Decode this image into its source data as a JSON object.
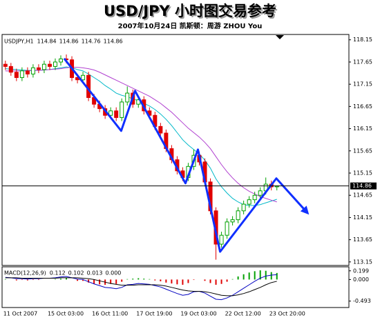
{
  "title": "USD/JPY  小时图交易参考",
  "subtitle": "2007年10月24日  凯斯顿：周游 ZHOU You",
  "chart_data": [
    {
      "type": "candlestick",
      "label": "USDJPY,H1",
      "categories": [
        "11 Oct 2007",
        null,
        null,
        null,
        null,
        null,
        null,
        null,
        "15 Oct 03:00",
        null,
        null,
        null,
        null,
        null,
        null,
        null,
        "16 Oct 11:00",
        null,
        null,
        null,
        null,
        null,
        null,
        null,
        "17 Oct 19:00",
        null,
        null,
        null,
        null,
        null,
        null,
        null,
        "19 Oct 03:00",
        null,
        null,
        null,
        null,
        null,
        null,
        null,
        "22 Oct 12:00",
        null,
        null,
        null,
        null,
        null,
        null,
        null,
        "23 Oct 20:00",
        null
      ],
      "xlim": [
        -0.6,
        62
      ],
      "ylim": [
        113.07,
        118.27
      ],
      "yticks": [
        118.15,
        117.65,
        117.15,
        116.65,
        116.15,
        115.65,
        115.15,
        114.65,
        114.15,
        113.65,
        113.15
      ],
      "open": [
        117.6,
        117.55,
        117.42,
        117.3,
        117.45,
        117.38,
        117.52,
        117.48,
        117.6,
        117.55,
        117.65,
        117.72,
        117.7,
        117.3,
        117.25,
        117.35,
        116.85,
        116.7,
        116.6,
        116.45,
        116.55,
        116.4,
        116.75,
        116.95,
        116.7,
        116.8,
        116.55,
        116.45,
        116.2,
        116.05,
        115.7,
        115.45,
        115.2,
        115.05,
        115.3,
        115.55,
        115.4,
        114.95,
        114.3,
        113.55,
        113.75,
        114.05,
        114.1,
        114.3,
        114.45,
        114.55,
        114.65,
        114.75,
        114.9,
        114.84
      ],
      "high": [
        117.68,
        117.63,
        117.5,
        117.53,
        117.53,
        117.6,
        117.6,
        117.68,
        117.68,
        117.73,
        117.8,
        117.82,
        117.78,
        117.38,
        117.43,
        117.43,
        116.93,
        116.78,
        116.68,
        116.63,
        116.63,
        116.83,
        117.1,
        117.03,
        116.88,
        116.88,
        116.63,
        116.53,
        116.28,
        116.13,
        115.78,
        115.53,
        115.28,
        115.38,
        115.68,
        115.63,
        115.48,
        115.03,
        114.38,
        113.83,
        114.13,
        114.18,
        114.38,
        114.53,
        114.63,
        114.73,
        114.83,
        115.05,
        114.98,
        114.86
      ],
      "low": [
        117.47,
        117.34,
        117.22,
        117.22,
        117.3,
        117.3,
        117.4,
        117.4,
        117.47,
        117.47,
        117.57,
        117.62,
        117.22,
        117.17,
        117.17,
        116.77,
        116.62,
        116.52,
        116.37,
        116.37,
        116.32,
        116.32,
        116.67,
        116.62,
        116.62,
        116.47,
        116.37,
        116.12,
        115.97,
        115.62,
        115.37,
        115.12,
        114.97,
        114.97,
        115.22,
        115.32,
        114.87,
        114.22,
        113.2,
        113.47,
        113.67,
        113.97,
        114.02,
        114.22,
        114.37,
        114.47,
        114.57,
        114.67,
        114.76,
        114.76
      ],
      "close": [
        117.55,
        117.42,
        117.3,
        117.45,
        117.38,
        117.52,
        117.48,
        117.6,
        117.55,
        117.65,
        117.72,
        117.7,
        117.3,
        117.25,
        117.35,
        116.85,
        116.7,
        116.6,
        116.45,
        116.55,
        116.4,
        116.75,
        116.95,
        116.7,
        116.8,
        116.55,
        116.45,
        116.2,
        116.05,
        115.7,
        115.45,
        115.2,
        115.05,
        115.3,
        115.55,
        115.4,
        114.95,
        114.3,
        113.55,
        113.75,
        114.05,
        114.1,
        114.3,
        114.45,
        114.55,
        114.65,
        114.75,
        114.9,
        114.84,
        114.86
      ],
      "up_color": "#00a000",
      "down_color": "#e00000",
      "series": [
        {
          "color": "#00b8c8",
          "values": [
            117.5,
            117.49,
            117.48,
            117.47,
            117.46,
            117.46,
            117.46,
            117.47,
            117.48,
            117.5,
            117.52,
            117.54,
            117.52,
            117.48,
            117.45,
            117.38,
            117.3,
            117.22,
            117.12,
            117.04,
            116.95,
            116.9,
            116.87,
            116.82,
            116.78,
            116.72,
            116.66,
            116.58,
            116.48,
            116.36,
            116.22,
            116.06,
            115.9,
            115.78,
            115.68,
            115.58,
            115.44,
            115.26,
            115.02,
            114.84,
            114.7,
            114.58,
            114.5,
            114.44,
            114.42,
            114.42,
            114.44,
            114.48,
            114.52,
            114.56
          ]
        },
        {
          "color": "#b040d0",
          "values": [
            117.45,
            117.45,
            117.45,
            117.45,
            117.45,
            117.46,
            117.46,
            117.47,
            117.48,
            117.49,
            117.5,
            117.52,
            117.53,
            117.53,
            117.52,
            117.5,
            117.47,
            117.42,
            117.36,
            117.3,
            117.24,
            117.18,
            117.12,
            117.06,
            117.0,
            116.94,
            116.88,
            116.8,
            116.72,
            116.62,
            116.52,
            116.4,
            116.28,
            116.16,
            116.06,
            115.96,
            115.84,
            115.7,
            115.52,
            115.34,
            115.18,
            115.04,
            114.92,
            114.82,
            114.74,
            114.68,
            114.62,
            114.58,
            114.54,
            114.5
          ]
        }
      ],
      "trend_line": {
        "color": "#1030ff",
        "x": [
          10.6,
          20.9,
          23.4,
          32.5,
          34.75,
          38.75,
          48.9,
          54.4
        ],
        "y": [
          117.73,
          116.1,
          117.0,
          114.92,
          115.68,
          113.38,
          115.03,
          114.27
        ]
      }
    },
    {
      "type": "macd",
      "label": "MACD(12,26,9)",
      "readings": [
        0.112,
        0.102,
        0.013,
        {
          "value": 0,
          "label": "0.000"
        }
      ],
      "ylim": [
        -0.64,
        0.29
      ],
      "yticks": [
        0.199,
        {
          "value": 0,
          "label": "0.000"
        },
        -0.493
      ],
      "histogram": {
        "values": [
          0.01,
          0,
          -0.02,
          -0.01,
          -0.02,
          -0.01,
          -0.01,
          0,
          0,
          0.01,
          0.02,
          0.03,
          0,
          -0.03,
          -0.03,
          -0.07,
          -0.1,
          -0.11,
          -0.12,
          -0.1,
          -0.1,
          -0.05,
          0.01,
          0.02,
          0.03,
          0.02,
          0.01,
          -0.02,
          -0.04,
          -0.07,
          -0.09,
          -0.11,
          -0.12,
          -0.08,
          -0.01,
          0,
          -0.03,
          -0.08,
          -0.12,
          -0.1,
          -0.05,
          0.01,
          0.07,
          0.12,
          0.16,
          0.19,
          0.21,
          0.2,
          0.17,
          0.15
        ]
      },
      "series": [
        {
          "color": "#0000c0",
          "values": [
            0.05,
            0.04,
            0.02,
            0.02,
            0.01,
            0.02,
            0.02,
            0.03,
            0.03,
            0.04,
            0.06,
            0.07,
            0.04,
            0.01,
            0.0,
            -0.05,
            -0.1,
            -0.14,
            -0.18,
            -0.19,
            -0.21,
            -0.18,
            -0.12,
            -0.11,
            -0.09,
            -0.1,
            -0.11,
            -0.14,
            -0.17,
            -0.22,
            -0.27,
            -0.32,
            -0.36,
            -0.34,
            -0.28,
            -0.27,
            -0.31,
            -0.38,
            -0.45,
            -0.46,
            -0.42,
            -0.36,
            -0.28,
            -0.2,
            -0.12,
            -0.04,
            0.03,
            0.08,
            0.1,
            0.11
          ]
        },
        {
          "color": "#000000",
          "values": [
            0.04,
            0.04,
            0.04,
            0.03,
            0.03,
            0.03,
            0.03,
            0.03,
            0.03,
            0.03,
            0.04,
            0.04,
            0.04,
            0.04,
            0.03,
            0.02,
            0.0,
            -0.03,
            -0.06,
            -0.09,
            -0.11,
            -0.13,
            -0.13,
            -0.13,
            -0.12,
            -0.12,
            -0.12,
            -0.12,
            -0.13,
            -0.15,
            -0.18,
            -0.21,
            -0.24,
            -0.26,
            -0.27,
            -0.27,
            -0.28,
            -0.3,
            -0.33,
            -0.36,
            -0.37,
            -0.37,
            -0.35,
            -0.32,
            -0.28,
            -0.23,
            -0.18,
            -0.12,
            -0.07,
            -0.04
          ]
        }
      ]
    }
  ]
}
